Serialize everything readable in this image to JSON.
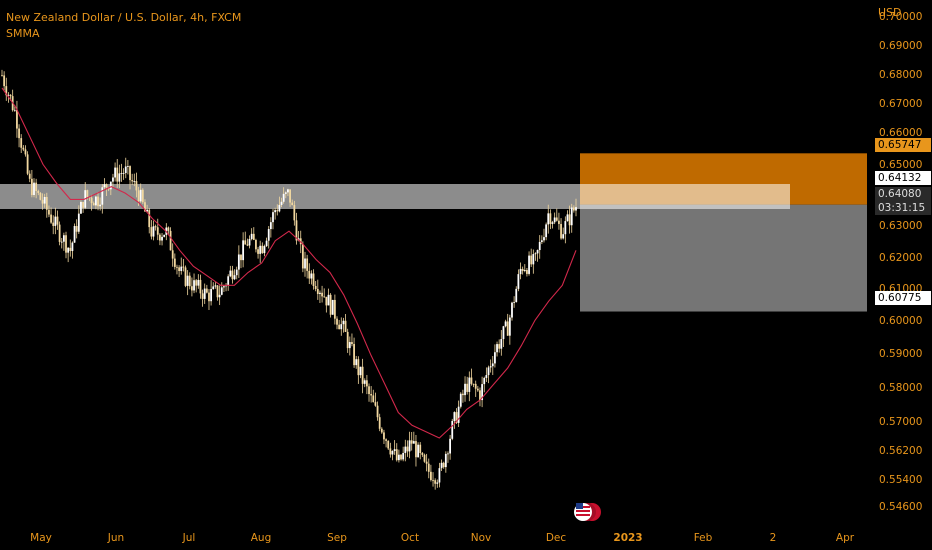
{
  "legend": {
    "symbol_title": "New Zealand Dollar / U.S. Dollar, 4h, FXCM",
    "indicator": "SMMA"
  },
  "price_axis": {
    "currency": "USD",
    "ticks": [
      "0.70000",
      "0.69000",
      "0.68000",
      "0.67000",
      "0.66000",
      "0.65000",
      "0.64000",
      "0.63000",
      "0.62000",
      "0.61000",
      "0.60000",
      "0.59000",
      "0.58000",
      "0.57000",
      "0.56200",
      "0.55400",
      "0.54600"
    ],
    "labels": {
      "take_profit": "0.65747",
      "entry": "0.64132",
      "last_price": "0.64080",
      "countdown": "03:31:15",
      "stop_loss": "0.60775"
    }
  },
  "time_axis": {
    "ticks": [
      {
        "label": "May",
        "bold": false
      },
      {
        "label": "Jun",
        "bold": false
      },
      {
        "label": "Jul",
        "bold": false
      },
      {
        "label": "Aug",
        "bold": false
      },
      {
        "label": "Sep",
        "bold": false
      },
      {
        "label": "Oct",
        "bold": false
      },
      {
        "label": "Nov",
        "bold": false
      },
      {
        "label": "Dec",
        "bold": false
      },
      {
        "label": "2023",
        "bold": true
      },
      {
        "label": "Feb",
        "bold": false
      },
      {
        "label": "2",
        "bold": false
      },
      {
        "label": "Apr",
        "bold": false
      }
    ]
  },
  "colors": {
    "accent": "#e8961c",
    "candle": "#f2d8a0",
    "smma": "#d2284b",
    "profit_zone": "#c97000",
    "loss_zone": "#7b7b7b"
  },
  "icons": {
    "events_flag": "us-flag-icon"
  },
  "chart_data": {
    "type": "line",
    "series": [
      {
        "values": [
          0.682,
          0.67,
          0.648,
          0.642,
          0.634,
          0.627,
          0.644,
          0.643,
          0.65,
          0.652,
          0.645,
          0.632,
          0.633,
          0.62,
          0.616,
          0.613,
          0.614,
          0.622,
          0.63,
          0.628,
          0.64,
          0.645,
          0.623,
          0.617,
          0.61,
          0.602,
          0.59,
          0.58,
          0.569,
          0.56,
          0.567,
          0.558,
          0.556,
          0.572,
          0.585,
          0.582,
          0.595,
          0.603,
          0.622,
          0.623,
          0.639,
          0.633,
          0.641
        ]
      },
      {
        "values": [
          0.678,
          0.672,
          0.663,
          0.654,
          0.648,
          0.643,
          0.643,
          0.645,
          0.647,
          0.645,
          0.642,
          0.637,
          0.633,
          0.627,
          0.622,
          0.619,
          0.616,
          0.616,
          0.62,
          0.623,
          0.63,
          0.633,
          0.629,
          0.624,
          0.62,
          0.613,
          0.604,
          0.594,
          0.585,
          0.576,
          0.572,
          0.57,
          0.568,
          0.572,
          0.577,
          0.58,
          0.585,
          0.59,
          0.597,
          0.605,
          0.611,
          0.616,
          0.627
        ]
      }
    ],
    "y_axis": {
      "min": 0.546,
      "max": 0.7
    },
    "position": {
      "entry": 0.64132,
      "take_profit": 0.65747,
      "stop_loss": 0.60775
    }
  }
}
